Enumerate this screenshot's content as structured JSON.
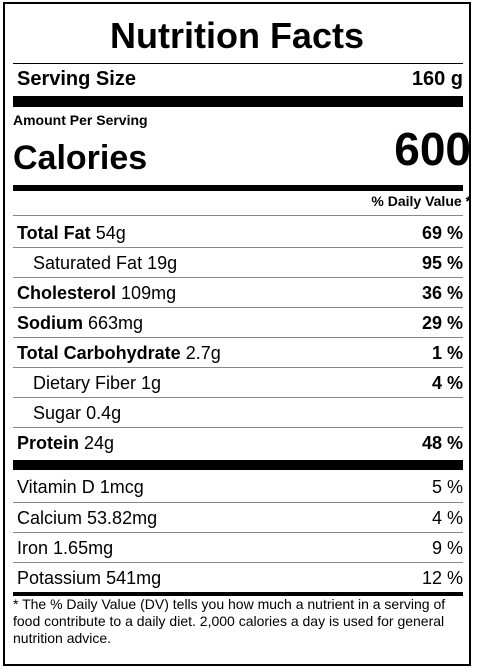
{
  "title": "Nutrition Facts",
  "serving": {
    "label": "Serving Size",
    "value": "160 g"
  },
  "amount_per_serving": "Amount Per Serving",
  "calories": {
    "label": "Calories",
    "value": "600"
  },
  "daily_value_header": "% Daily Value *",
  "nutrients": [
    {
      "name": "Total Fat",
      "amount": "54g",
      "dv": "69 %"
    },
    {
      "name": "Saturated Fat",
      "amount": "19g",
      "dv": "95 %"
    },
    {
      "name": "Cholesterol",
      "amount": "109mg",
      "dv": "36 %"
    },
    {
      "name": "Sodium",
      "amount": "663mg",
      "dv": "29 %"
    },
    {
      "name": "Total Carbohydrate",
      "amount": "2.7g",
      "dv": "1 %"
    },
    {
      "name": "Dietary Fiber",
      "amount": "1g",
      "dv": "4 %"
    },
    {
      "name": "Sugar",
      "amount": "0.4g",
      "dv": ""
    },
    {
      "name": "Protein",
      "amount": "24g",
      "dv": "48 %"
    }
  ],
  "vitamins": [
    {
      "name": "Vitamin D",
      "amount": "1mcg",
      "dv": "5 %"
    },
    {
      "name": "Calcium",
      "amount": "53.82mg",
      "dv": "4 %"
    },
    {
      "name": "Iron",
      "amount": "1.65mg",
      "dv": "9 %"
    },
    {
      "name": "Potassium",
      "amount": "541mg",
      "dv": "12 %"
    }
  ],
  "footnote": "* The % Daily Value (DV) tells you how much a nutrient in a serving of food contribute to a daily diet. 2,000 calories a day is used for general nutrition advice."
}
